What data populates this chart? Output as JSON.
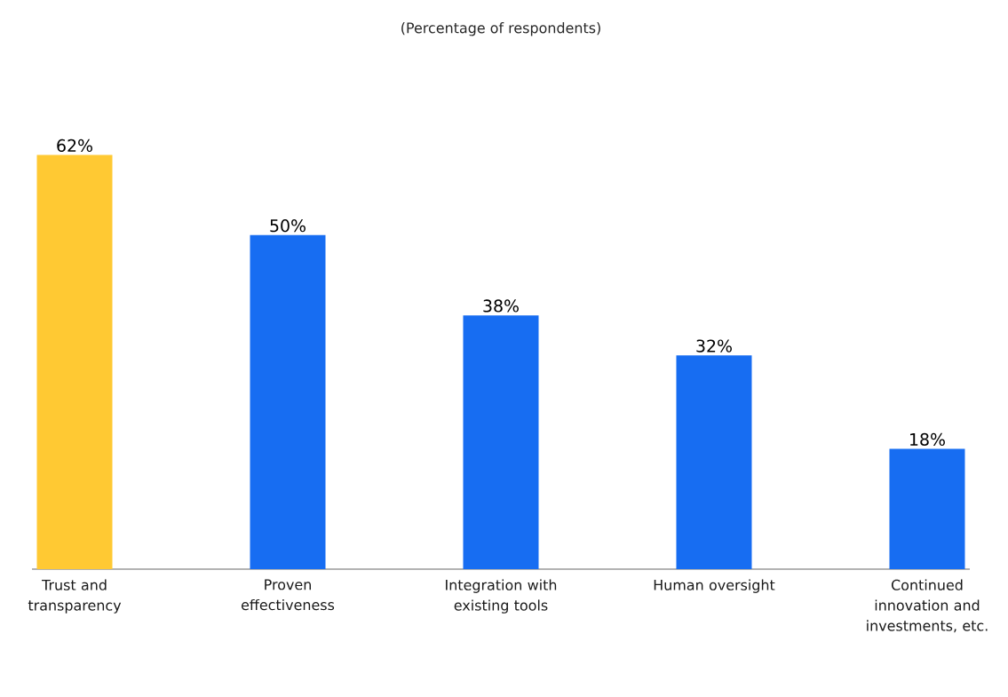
{
  "chart_data": {
    "type": "bar",
    "title": "(Percentage of respondents)",
    "categories": [
      "Trust and transparency",
      "Proven effectiveness",
      "Integration with existing tools",
      "Human oversight",
      "Continued innovation and investments, etc."
    ],
    "values": [
      62,
      50,
      38,
      32,
      18
    ],
    "colors": [
      "#ffc933",
      "#176df2",
      "#176df2",
      "#176df2",
      "#176df2"
    ],
    "value_labels": [
      "62%",
      "50%",
      "38%",
      "32%",
      "18%"
    ]
  }
}
